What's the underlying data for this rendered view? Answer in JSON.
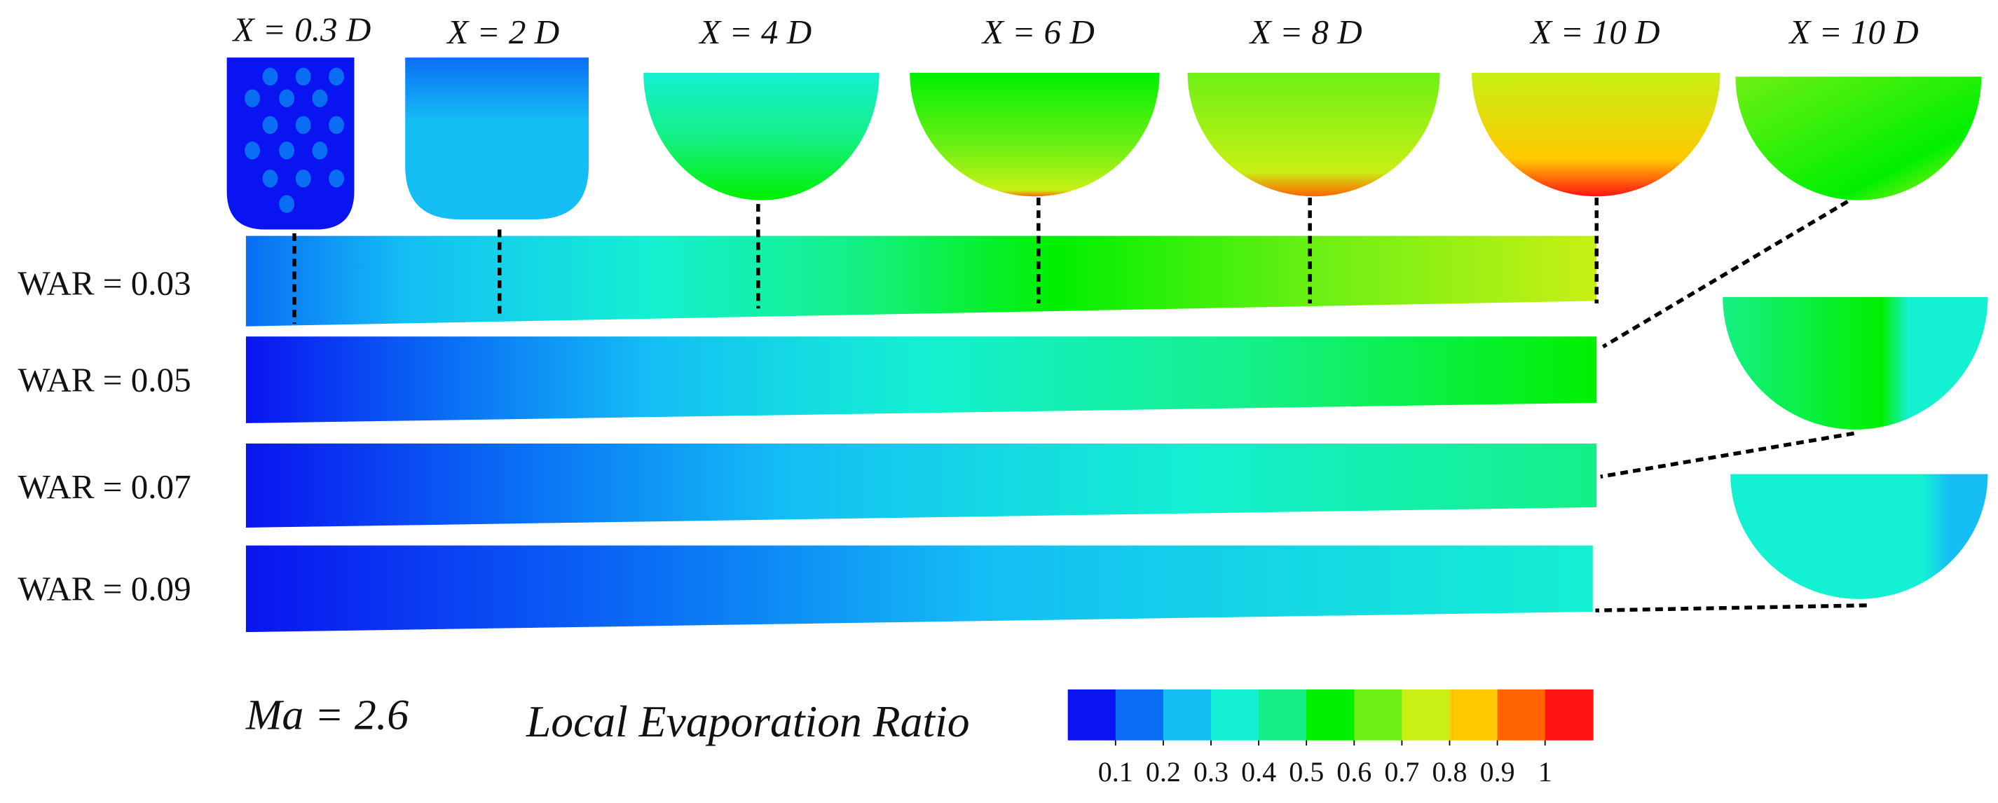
{
  "column_labels": [
    "X = 0.3 D",
    "X = 2 D",
    "X = 4 D",
    "X = 6 D",
    "X = 8 D",
    "X = 10 D",
    "X = 10 D"
  ],
  "row_labels": [
    "WAR = 0.03",
    "WAR = 0.05",
    "WAR = 0.07",
    "WAR = 0.09"
  ],
  "mach_label": "Ma = 2.6",
  "colorbar": {
    "title": "Local Evaporation Ratio",
    "colors": [
      "#0a14f0",
      "#0a6ef5",
      "#14bef5",
      "#14f0d2",
      "#14f087",
      "#00f000",
      "#6ef014",
      "#c8f014",
      "#ffc800",
      "#ff6400",
      "#ff1414"
    ],
    "clim": [
      0,
      1.1
    ],
    "ticks": [
      0.1,
      0.2,
      0.3,
      0.4,
      0.5,
      0.6,
      0.7,
      0.8,
      0.9,
      1
    ]
  }
}
